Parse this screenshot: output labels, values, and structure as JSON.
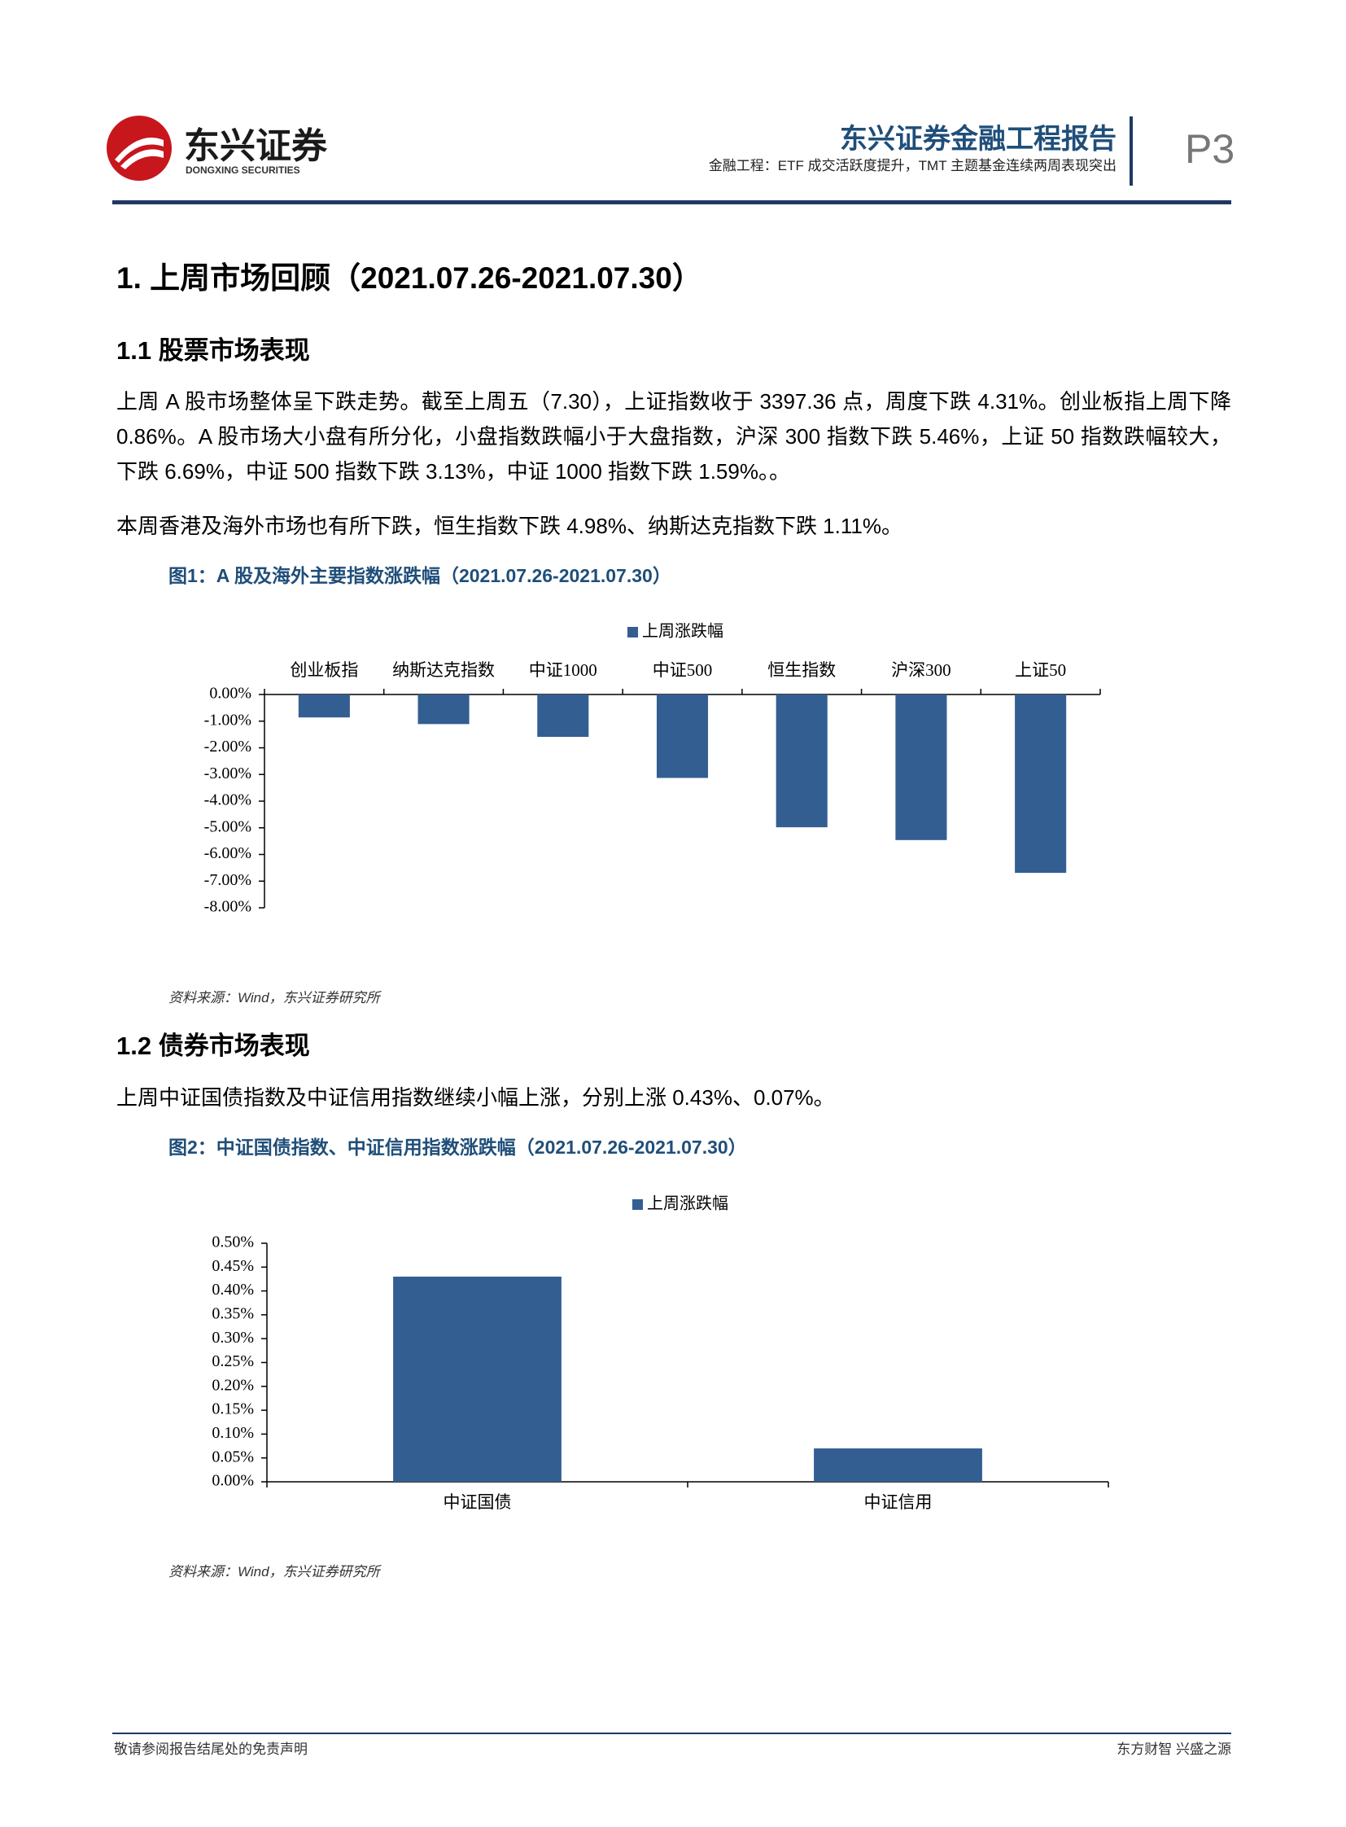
{
  "header": {
    "logo_name": "东兴证券",
    "logo_sub": "DONGXING SECURITIES",
    "title": "东兴证券金融工程报告",
    "subtitle": "金融工程：ETF 成交活跃度提升，TMT 主题基金连续两周表现突出",
    "page": "P3"
  },
  "section_title": "1. 上周市场回顾（2021.07.26-2021.07.30）",
  "subsections": [
    {
      "title": "1.1 股票市场表现",
      "paragraphs": [
        "上周 A 股市场整体呈下跌走势。截至上周五（7.30），上证指数收于 3397.36 点，周度下跌 4.31%。创业板指上周下降 0.86%。A 股市场大小盘有所分化，小盘指数跌幅小于大盘指数，沪深 300 指数下跌 5.46%，上证 50 指数跌幅较大，下跌 6.69%，中证 500 指数下跌 3.13%，中证 1000 指数下跌 1.59%。。",
        "本周香港及海外市场也有所下跌，恒生指数下跌 4.98%、纳斯达克指数下跌 1.11%。"
      ],
      "figure_caption": "图1：A 股及海外主要指数涨跌幅（2021.07.26-2021.07.30）",
      "source": "资料来源：Wind，东兴证券研究所"
    },
    {
      "title": "1.2 债券市场表现",
      "paragraphs": [
        "上周中证国债指数及中证信用指数继续小幅上涨，分别上涨 0.43%、0.07%。"
      ],
      "figure_caption": "图2：中证国债指数、中证信用指数涨跌幅（2021.07.26-2021.07.30）",
      "source": "资料来源：Wind，东兴证券研究所"
    }
  ],
  "chart_data": [
    {
      "type": "bar",
      "categories": [
        "创业板指",
        "纳斯达克指数",
        "中证1000",
        "中证500",
        "恒生指数",
        "沪深300",
        "上证50"
      ],
      "series": [
        {
          "name": "上周涨跌幅",
          "color": "#335e92",
          "values": [
            -0.86,
            -1.11,
            -1.59,
            -3.13,
            -4.98,
            -5.46,
            -6.69
          ]
        }
      ],
      "ylim": [
        -8,
        0
      ],
      "yticks": [
        {
          "value": 0,
          "label": "0.00%"
        },
        {
          "value": -1,
          "label": "-1.00%"
        },
        {
          "value": -2,
          "label": "-2.00%"
        },
        {
          "value": -3,
          "label": "-3.00%"
        },
        {
          "value": -4,
          "label": "-4.00%"
        },
        {
          "value": -5,
          "label": "-5.00%"
        },
        {
          "value": -6,
          "label": "-6.00%"
        },
        {
          "value": -7,
          "label": "-7.00%"
        },
        {
          "value": -8,
          "label": "-8.00%"
        }
      ],
      "legend": "top"
    },
    {
      "type": "bar",
      "categories": [
        "中证国债",
        "中证信用"
      ],
      "series": [
        {
          "name": "上周涨跌幅",
          "color": "#335e92",
          "values": [
            0.43,
            0.07
          ]
        }
      ],
      "ylim": [
        0,
        0.5
      ],
      "yticks": [
        {
          "value": 0,
          "label": "0.00%"
        },
        {
          "value": 0.05,
          "label": "0.05%"
        },
        {
          "value": 0.1,
          "label": "0.10%"
        },
        {
          "value": 0.15,
          "label": "0.15%"
        },
        {
          "value": 0.2,
          "label": "0.20%"
        },
        {
          "value": 0.25,
          "label": "0.25%"
        },
        {
          "value": 0.3,
          "label": "0.30%"
        },
        {
          "value": 0.35,
          "label": "0.35%"
        },
        {
          "value": 0.4,
          "label": "0.40%"
        },
        {
          "value": 0.45,
          "label": "0.45%"
        },
        {
          "value": 0.5,
          "label": "0.50%"
        }
      ],
      "legend": "top"
    }
  ],
  "footer": {
    "left": "敬请参阅报告结尾处的免责声明",
    "right": "东方财智 兴盛之源"
  }
}
